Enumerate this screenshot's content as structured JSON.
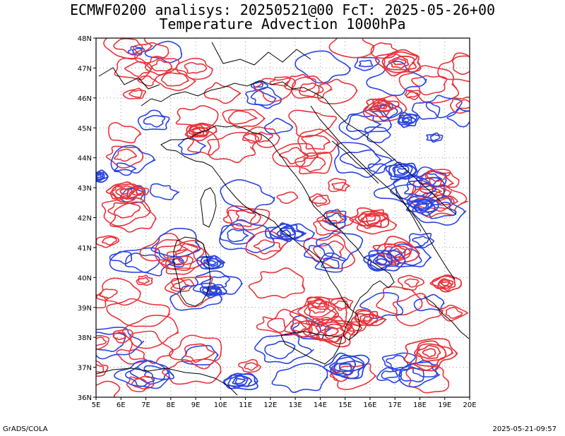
{
  "title_line1": "ECMWF0200 analisys: 20250521@00 FcT: 2025-05-26+00",
  "title_line2": "Temperature Advection 1000hPa",
  "footer_left": "GrADS/COLA",
  "footer_right": "2025-05-21-09:57",
  "map": {
    "lon_labels": [
      "5E",
      "6E",
      "7E",
      "8E",
      "9E",
      "10E",
      "11E",
      "12E",
      "13E",
      "14E",
      "15E",
      "16E",
      "17E",
      "18E",
      "19E",
      "20E"
    ],
    "lat_labels": [
      "48N",
      "47N",
      "46N",
      "45N",
      "44N",
      "43N",
      "42N",
      "41N",
      "40N",
      "39N",
      "38N",
      "37N",
      "36N"
    ],
    "colors": {
      "warm": "#e8343c",
      "cold": "#2a44e0",
      "coast": "#000000",
      "grid": "#9a9a9a"
    }
  }
}
